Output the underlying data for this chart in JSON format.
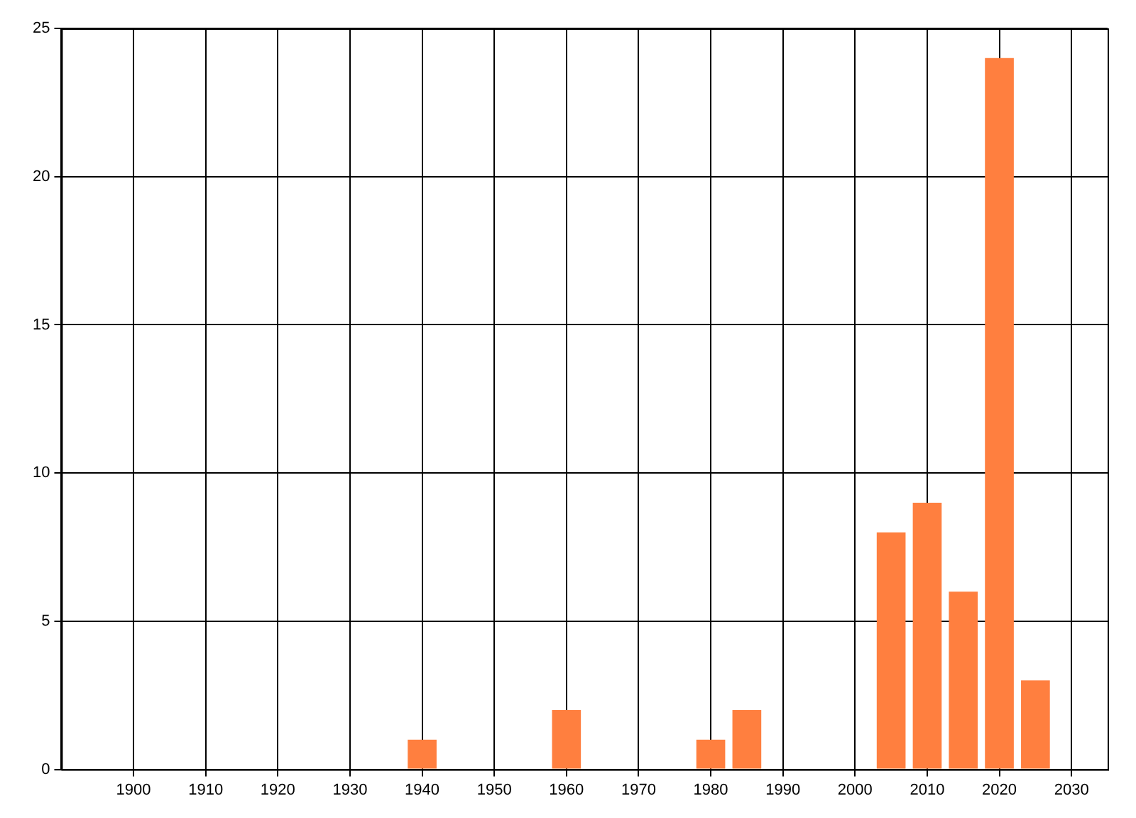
{
  "chart_data": {
    "type": "bar",
    "x": [
      1940,
      1960,
      1980,
      1985,
      2005,
      2010,
      2015,
      2020,
      2025
    ],
    "values": [
      1,
      2,
      1,
      2,
      8,
      9,
      6,
      24,
      3
    ],
    "color": "#ff7f3f",
    "xlim": [
      1890,
      2035
    ],
    "xticks": [
      1900,
      1910,
      1920,
      1930,
      1940,
      1950,
      1960,
      1970,
      1980,
      1990,
      2000,
      2010,
      2020,
      2030
    ],
    "ylim": [
      0,
      25
    ],
    "yticks": [
      0,
      5,
      10,
      15,
      20,
      25
    ],
    "grid": true
  }
}
